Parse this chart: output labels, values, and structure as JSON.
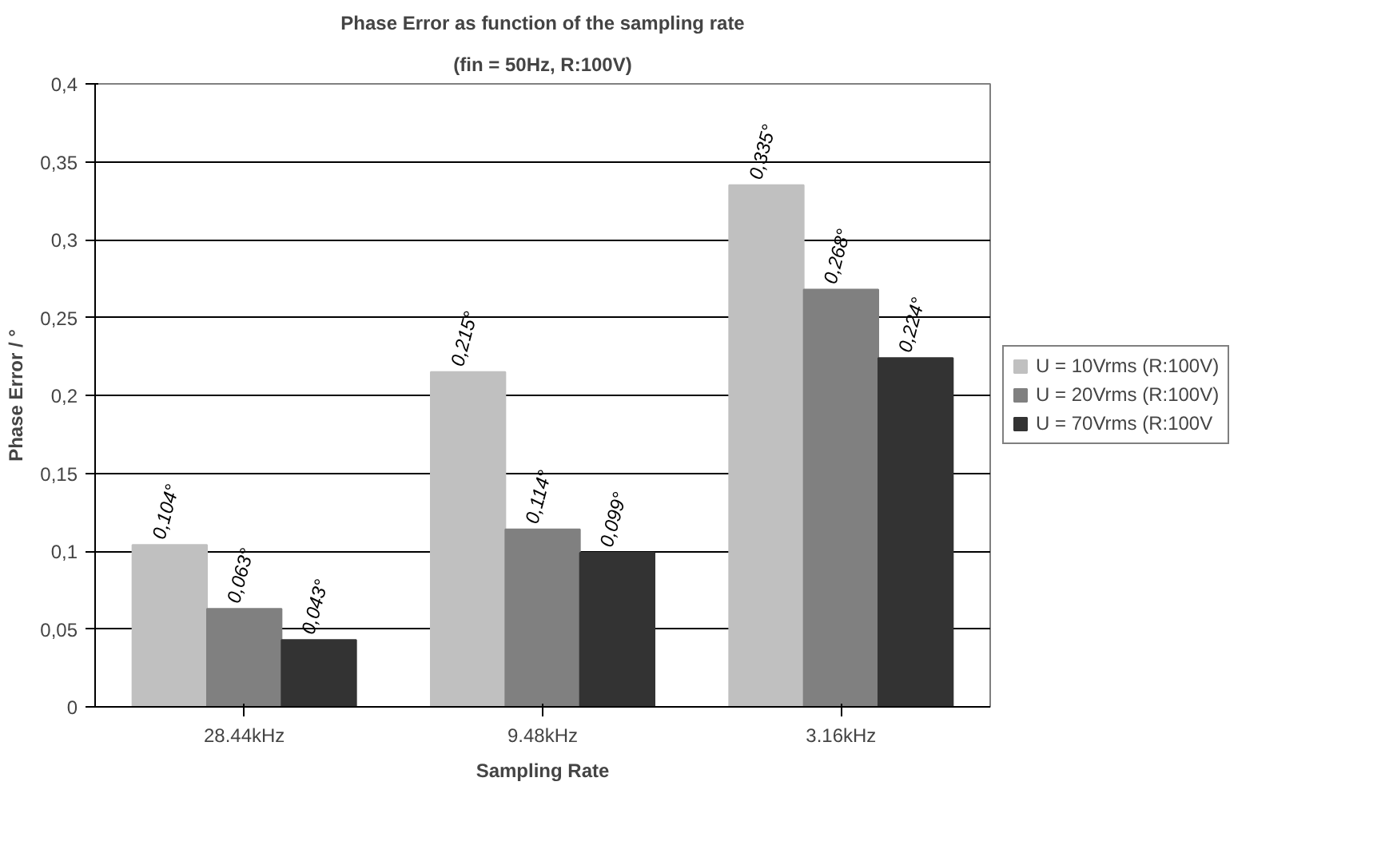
{
  "chart_data": {
    "type": "bar",
    "title": "Phase Error as function of the sampling rate",
    "subtitle": "(fin = 50Hz, R:100V)",
    "xlabel": "Sampling Rate",
    "ylabel": "Phase Error / °",
    "categories": [
      "28.44kHz",
      "9.48kHz",
      "3.16kHz"
    ],
    "series": [
      {
        "name": "U = 10Vrms (R:100V)",
        "color": "#c0c0c0",
        "values": [
          0.104,
          0.215,
          0.335
        ],
        "value_labels": [
          "0,104°",
          "0,215°",
          "0,335°"
        ]
      },
      {
        "name": "U = 20Vrms (R:100V)",
        "color": "#808080",
        "values": [
          0.063,
          0.114,
          0.268
        ],
        "value_labels": [
          "0,063°",
          "0,114°",
          "0,268°"
        ]
      },
      {
        "name": "U = 70Vrms (R:100V",
        "color": "#333333",
        "values": [
          0.043,
          0.099,
          0.224
        ],
        "value_labels": [
          "0,043°",
          "0,099°",
          "0,224°"
        ]
      }
    ],
    "ylim": [
      0,
      0.4
    ],
    "yticks": [
      0,
      {
        "value": 0.05,
        "label": "0,05"
      },
      {
        "value": 0.1,
        "label": "0,1"
      },
      {
        "value": 0.15,
        "label": "0,15"
      },
      {
        "value": 0.2,
        "label": "0,2"
      },
      {
        "value": 0.25,
        "label": "0,25"
      },
      {
        "value": 0.3,
        "label": "0,3"
      },
      {
        "value": 0.35,
        "label": "0,35"
      },
      {
        "value": 0.4,
        "label": "0,4"
      }
    ],
    "grid": "y",
    "legend": "right"
  }
}
